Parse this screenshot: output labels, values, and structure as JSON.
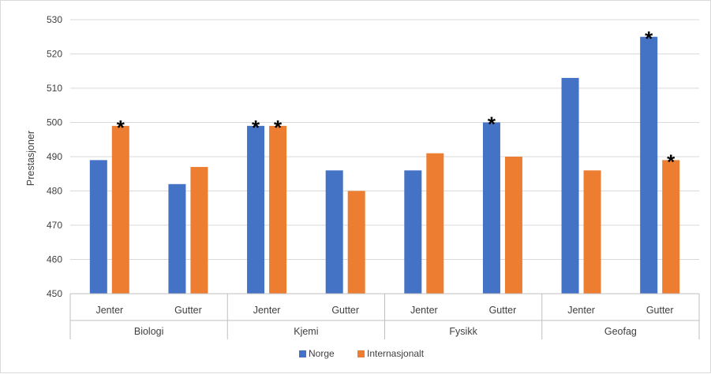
{
  "chart_data": {
    "type": "bar",
    "title": "",
    "xlabel": "",
    "ylabel": "Prestasjoner",
    "ylim": [
      450,
      530
    ],
    "yticks": [
      450,
      460,
      470,
      480,
      490,
      500,
      510,
      520,
      530
    ],
    "grid": true,
    "legend_position": "bottom",
    "groups": [
      "Biologi",
      "Kjemi",
      "Fysikk",
      "Geofag"
    ],
    "categories": [
      "Jenter",
      "Gutter",
      "Jenter",
      "Gutter",
      "Jenter",
      "Gutter",
      "Jenter",
      "Gutter"
    ],
    "series": [
      {
        "name": "Norge",
        "color": "#4472c4",
        "values": [
          489,
          482,
          499,
          486,
          486,
          500,
          513,
          525
        ],
        "marked": [
          false,
          false,
          true,
          false,
          false,
          true,
          false,
          true
        ]
      },
      {
        "name": "Internasjonalt",
        "color": "#ed7d31",
        "values": [
          499,
          487,
          499,
          480,
          491,
          490,
          486,
          489
        ],
        "marked": [
          true,
          false,
          true,
          false,
          false,
          false,
          false,
          true
        ]
      }
    ],
    "marker_symbol": "*"
  }
}
